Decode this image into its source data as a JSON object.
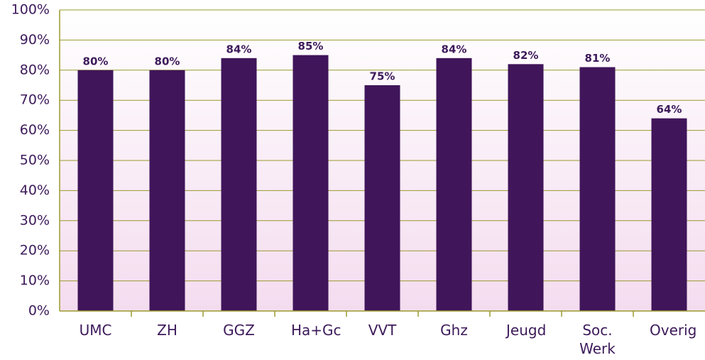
{
  "chart_data": {
    "type": "bar",
    "categories": [
      "UMC",
      "ZH",
      "GGZ",
      "Ha+Gc",
      "VVT",
      "Ghz",
      "Jeugd",
      "Soc. Werk",
      "Overig"
    ],
    "values": [
      80,
      80,
      84,
      85,
      75,
      84,
      82,
      81,
      64
    ],
    "value_labels": [
      "80%",
      "80%",
      "84%",
      "85%",
      "75%",
      "84%",
      "82%",
      "81%",
      "64%"
    ],
    "color": "#40155a",
    "ylim": [
      0,
      100
    ],
    "yticks": [
      {
        "value": 0,
        "label": "0%"
      },
      {
        "value": 10,
        "label": "10%"
      },
      {
        "value": 20,
        "label": "20%"
      },
      {
        "value": 30,
        "label": "30%"
      },
      {
        "value": 40,
        "label": "40%"
      },
      {
        "value": 50,
        "label": "50%"
      },
      {
        "value": 60,
        "label": "60%"
      },
      {
        "value": 70,
        "label": "70%"
      },
      {
        "value": 80,
        "label": "80%"
      },
      {
        "value": 90,
        "label": "90%"
      },
      {
        "value": 100,
        "label": "100%"
      }
    ],
    "grid": true
  }
}
